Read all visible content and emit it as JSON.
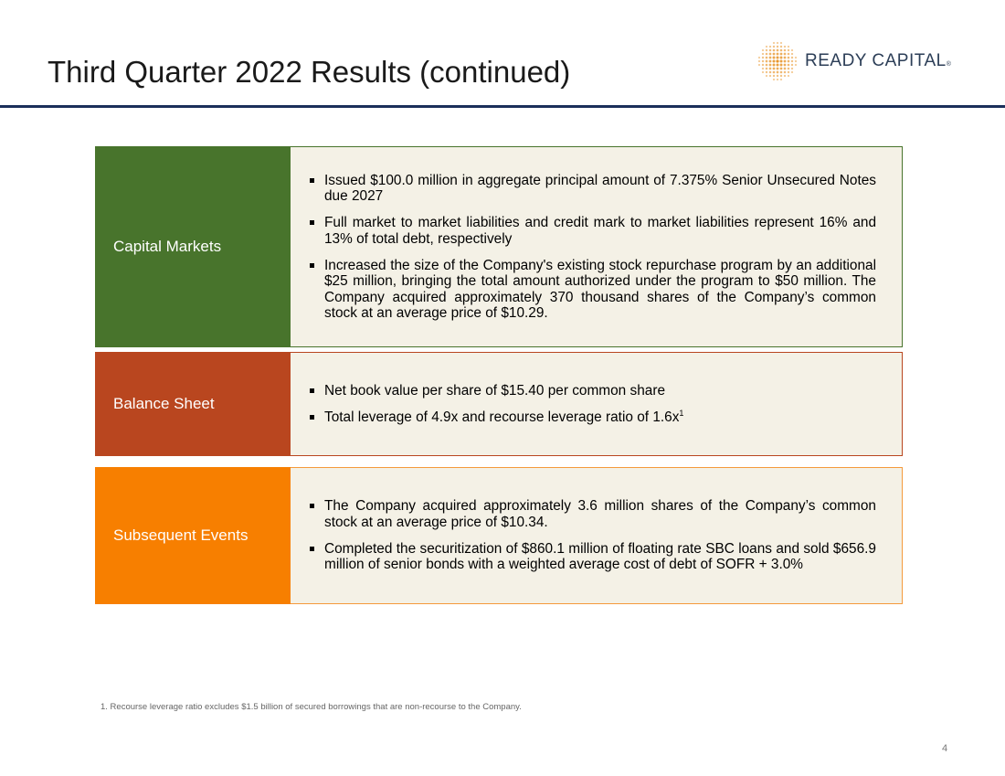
{
  "header": {
    "title": "Third Quarter 2022 Results (continued)",
    "logo_text": "READY CAPITAL",
    "logo_mark": "®",
    "accent_color": "#1b2f5a",
    "logo_dot_color": "#e8952a"
  },
  "sections": [
    {
      "label": "Capital Markets",
      "color": "#48742c",
      "bullets": [
        "Issued $100.0 million in aggregate principal amount of 7.375% Senior Unsecured Notes due 2027",
        "Full market to market liabilities and credit mark to market liabilities represent 16% and 13% of total debt, respectively",
        "Increased the size of the Company's existing stock repurchase program by an additional $25 million, bringing the total amount authorized under the program to $50 million. The Company acquired approximately 370 thousand shares of the Company’s common stock at an average price of $10.29."
      ]
    },
    {
      "label": "Balance Sheet",
      "color": "#b9461f",
      "bullets": [
        "Net book value per share of $15.40 per common share",
        "Total leverage of 4.9x and recourse leverage ratio of 1.6x"
      ],
      "superscript": "1"
    },
    {
      "label": "Subsequent Events",
      "color": "#f77f00",
      "bullets": [
        "The Company acquired approximately 3.6 million shares of the Company’s common stock at an average price of $10.34.",
        "Completed the securitization of $860.1 million of floating rate SBC loans and sold $656.9 million of senior bonds with a weighted average cost of debt of SOFR + 3.0%"
      ]
    }
  ],
  "footnote": "1. Recourse leverage ratio excludes $1.5 billion of secured borrowings that are non-recourse to the Company.",
  "page_number": "4"
}
